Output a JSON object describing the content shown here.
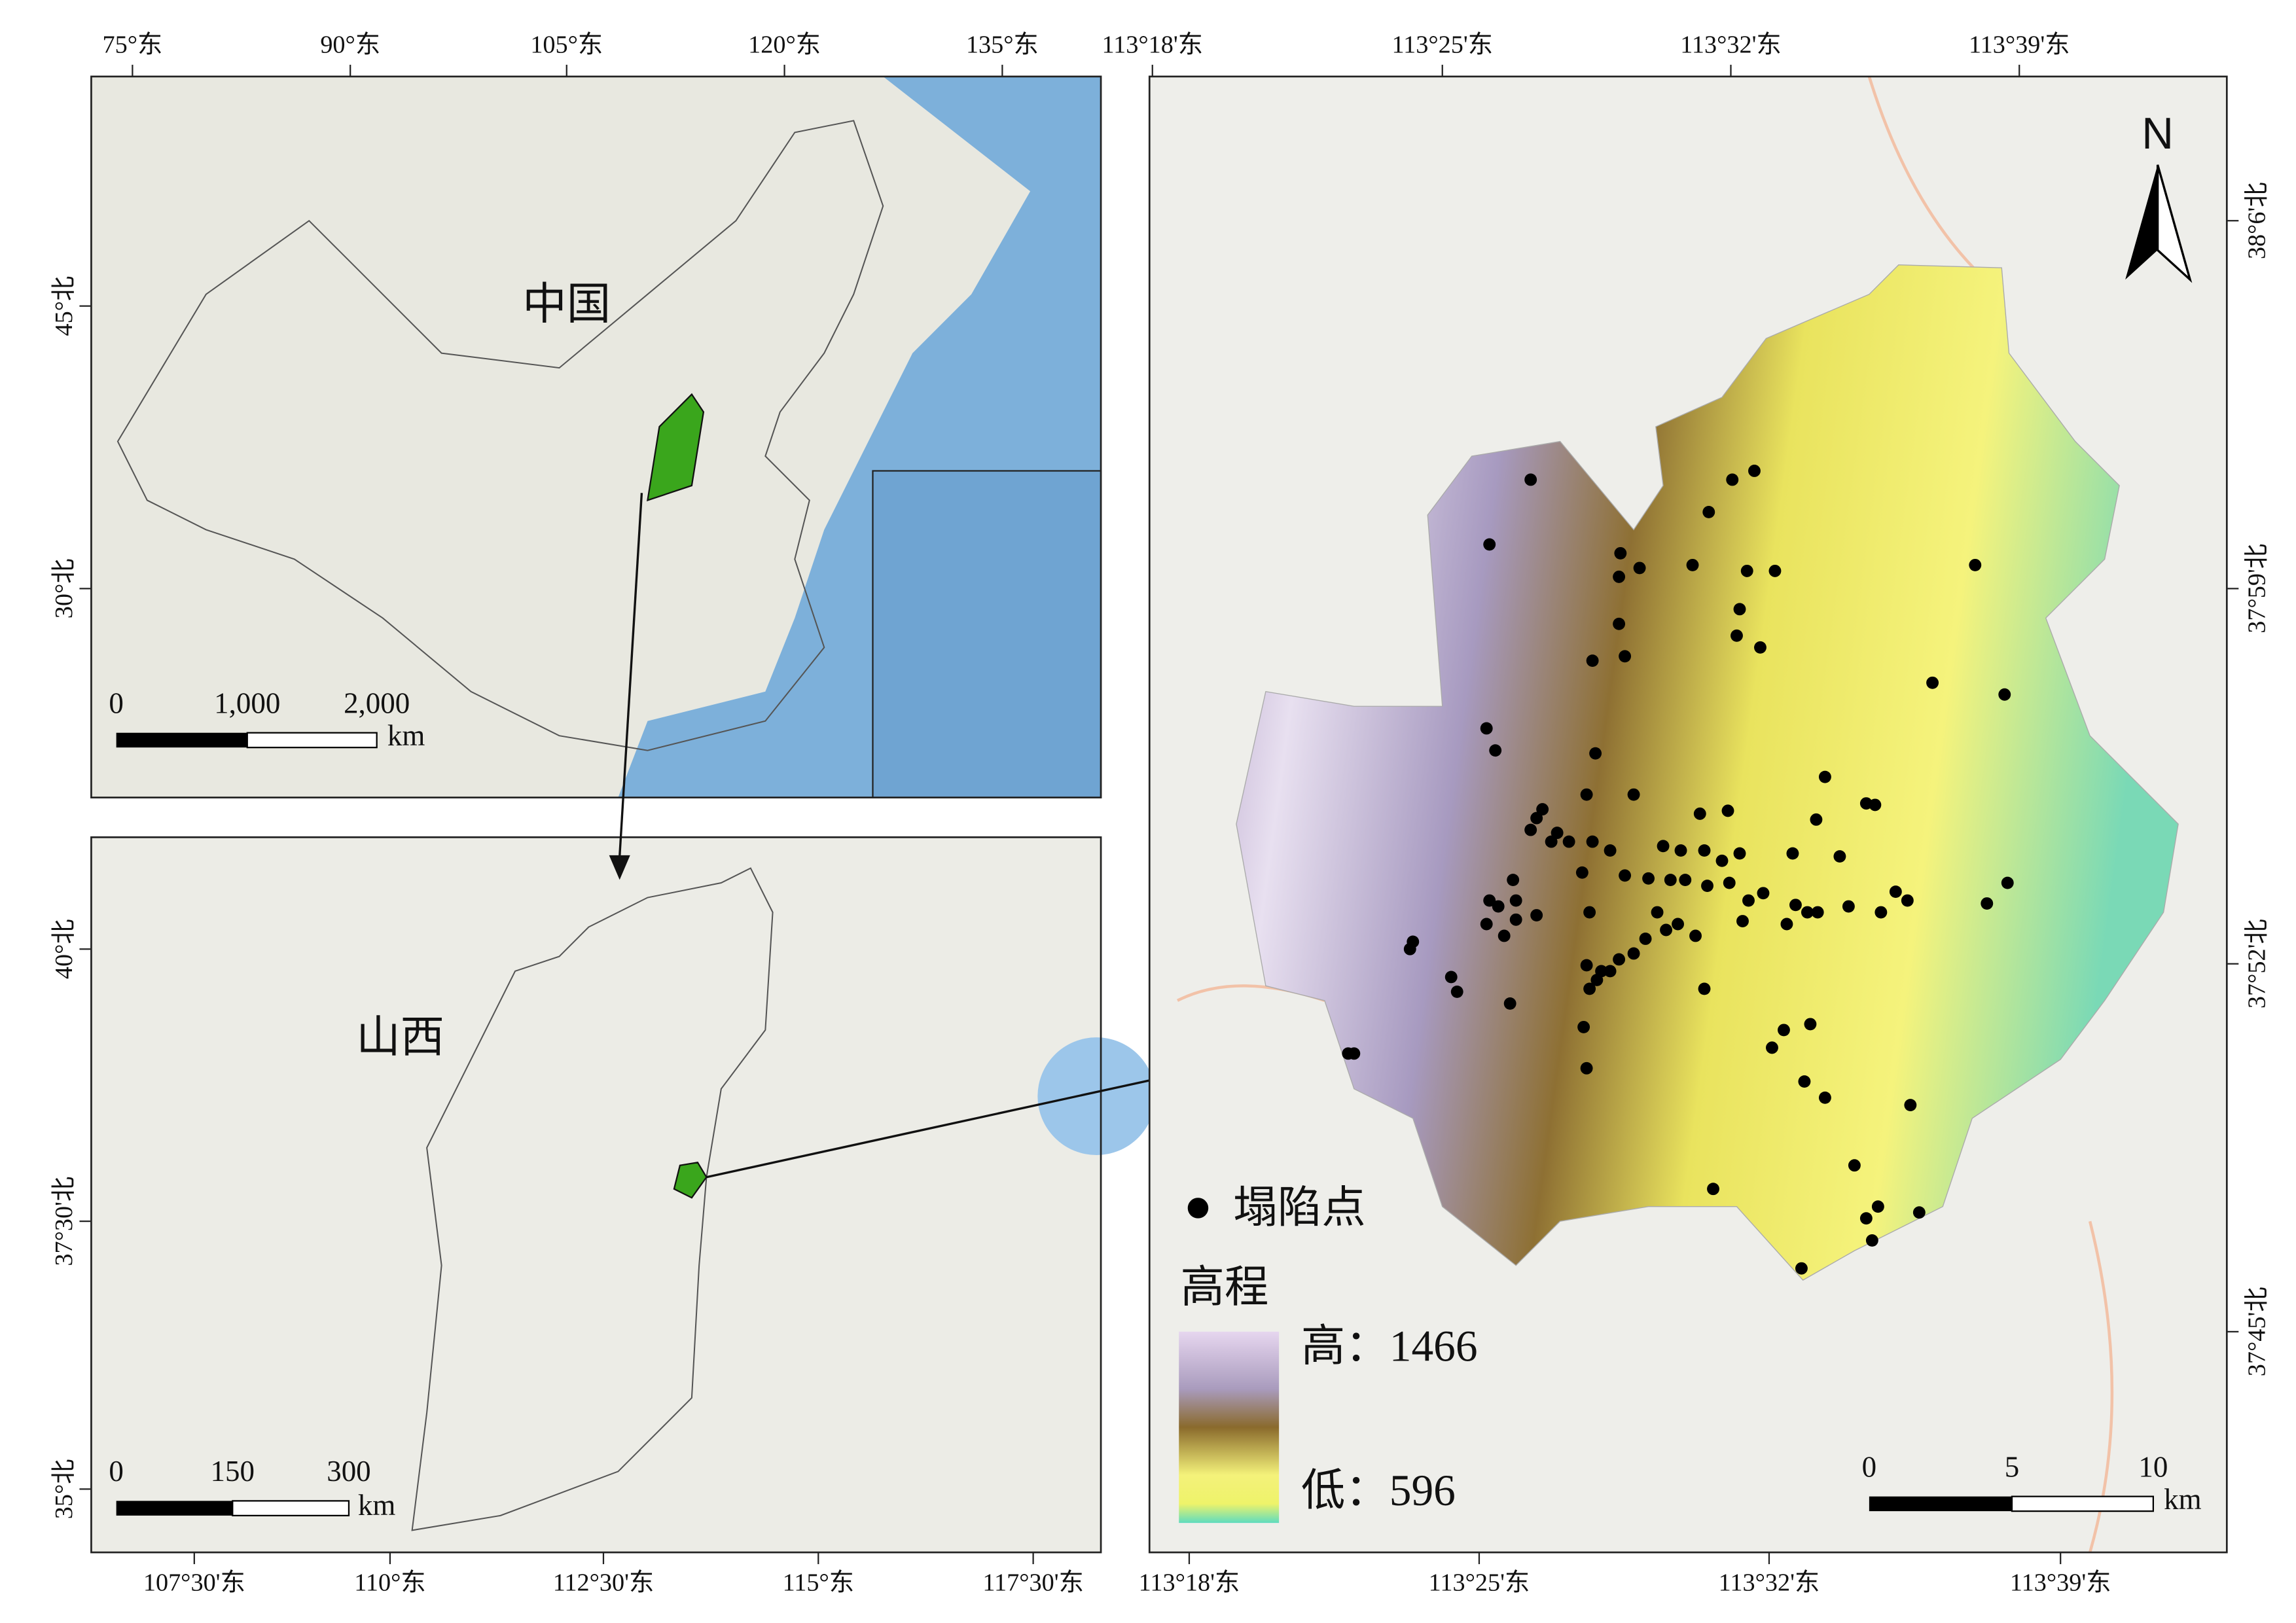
{
  "panels": {
    "china": {
      "label": "中国",
      "top_ticks": [
        "75°东",
        "90°东",
        "105°东",
        "120°东",
        "135°东"
      ],
      "left_ticks": [
        "45°北",
        "30°北"
      ],
      "scale": {
        "ticks": [
          "0",
          "1,000",
          "2,000"
        ],
        "unit": "km"
      }
    },
    "shanxi": {
      "label": "山西",
      "bottom_ticks": [
        "107°30'东",
        "110°东",
        "112°30'东",
        "115°东",
        "117°30'东"
      ],
      "left_ticks": [
        "40°北",
        "37°30'北",
        "35°北"
      ],
      "scale": {
        "ticks": [
          "0",
          "150",
          "300"
        ],
        "unit": "km"
      }
    },
    "study": {
      "top_ticks": [
        "113°18'东",
        "113°25'东",
        "113°32'东",
        "113°39'东"
      ],
      "bottom_ticks": [
        "113°18'东",
        "113°25'东",
        "113°32'东",
        "113°39'东"
      ],
      "right_ticks": [
        "38°6'北",
        "37°59'北",
        "37°52'北",
        "37°45'北"
      ],
      "north": "N",
      "legend": {
        "points": "塌陷点",
        "elevation_title": "高程",
        "high": "高：1466",
        "low": "低：596"
      },
      "scale": {
        "ticks": [
          "0",
          "5",
          "10"
        ],
        "unit": "km"
      }
    }
  }
}
